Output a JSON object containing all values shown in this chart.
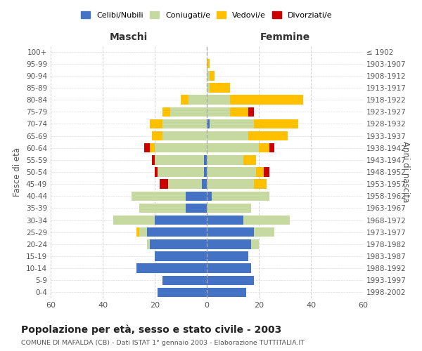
{
  "age_groups": [
    "0-4",
    "5-9",
    "10-14",
    "15-19",
    "20-24",
    "25-29",
    "30-34",
    "35-39",
    "40-44",
    "45-49",
    "50-54",
    "55-59",
    "60-64",
    "65-69",
    "70-74",
    "75-79",
    "80-84",
    "85-89",
    "90-94",
    "95-99",
    "100+"
  ],
  "birth_years": [
    "1998-2002",
    "1993-1997",
    "1988-1992",
    "1983-1987",
    "1978-1982",
    "1973-1977",
    "1968-1972",
    "1963-1967",
    "1958-1962",
    "1953-1957",
    "1948-1952",
    "1943-1947",
    "1938-1942",
    "1933-1937",
    "1928-1932",
    "1923-1927",
    "1918-1922",
    "1913-1917",
    "1908-1912",
    "1903-1907",
    "≤ 1902"
  ],
  "males": {
    "celibi": [
      19,
      17,
      27,
      20,
      22,
      23,
      20,
      8,
      8,
      2,
      1,
      1,
      0,
      0,
      0,
      0,
      0,
      0,
      0,
      0,
      0
    ],
    "coniugati": [
      0,
      0,
      0,
      0,
      1,
      3,
      16,
      18,
      21,
      13,
      18,
      19,
      20,
      17,
      17,
      14,
      7,
      0,
      0,
      0,
      0
    ],
    "vedovi": [
      0,
      0,
      0,
      0,
      0,
      1,
      0,
      0,
      0,
      0,
      0,
      0,
      2,
      4,
      5,
      3,
      3,
      0,
      0,
      0,
      0
    ],
    "divorziati": [
      0,
      0,
      0,
      0,
      0,
      0,
      0,
      0,
      0,
      3,
      1,
      1,
      2,
      0,
      0,
      0,
      0,
      0,
      0,
      0,
      0
    ]
  },
  "females": {
    "nubili": [
      15,
      18,
      17,
      16,
      17,
      18,
      14,
      0,
      2,
      0,
      0,
      0,
      0,
      0,
      1,
      0,
      0,
      0,
      0,
      0,
      0
    ],
    "coniugate": [
      0,
      0,
      0,
      0,
      3,
      8,
      18,
      17,
      22,
      18,
      19,
      14,
      20,
      16,
      17,
      9,
      9,
      1,
      1,
      0,
      0
    ],
    "vedove": [
      0,
      0,
      0,
      0,
      0,
      0,
      0,
      0,
      0,
      5,
      3,
      5,
      4,
      15,
      17,
      7,
      28,
      8,
      2,
      1,
      0
    ],
    "divorziate": [
      0,
      0,
      0,
      0,
      0,
      0,
      0,
      0,
      0,
      0,
      2,
      0,
      2,
      0,
      0,
      2,
      0,
      0,
      0,
      0,
      0
    ]
  },
  "colors": {
    "celibi": "#4472c4",
    "coniugati": "#c5d9a0",
    "vedovi": "#ffc000",
    "divorziati": "#cc0000"
  },
  "title": "Popolazione per età, sesso e stato civile - 2003",
  "subtitle": "COMUNE DI MAFALDA (CB) - Dati ISTAT 1° gennaio 2003 - Elaborazione TUTTITALIA.IT",
  "xlabel_left": "Maschi",
  "xlabel_right": "Femmine",
  "ylabel_left": "Fasce di età",
  "ylabel_right": "Anni di nascita",
  "xlim": 60,
  "background_color": "#ffffff",
  "grid_color": "#cccccc"
}
